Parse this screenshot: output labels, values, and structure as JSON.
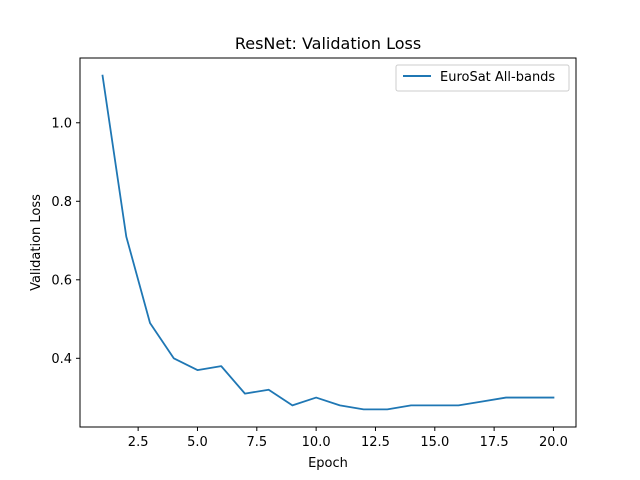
{
  "chart_data": {
    "type": "line",
    "title": "ResNet: Validation Loss",
    "xlabel": "Epoch",
    "ylabel": "Validation Loss",
    "xlim": [
      0.05,
      20.95
    ],
    "ylim": [
      0.225,
      1.165
    ],
    "xticks": [
      2.5,
      5.0,
      7.5,
      10.0,
      12.5,
      15.0,
      17.5,
      20.0
    ],
    "xtick_labels": [
      "2.5",
      "5.0",
      "7.5",
      "10.0",
      "12.5",
      "15.0",
      "17.5",
      "20.0"
    ],
    "yticks": [
      0.4,
      0.6,
      0.8,
      1.0
    ],
    "ytick_labels": [
      "0.4",
      "0.6",
      "0.8",
      "1.0"
    ],
    "grid": false,
    "legend_position": "top-right",
    "series": [
      {
        "name": "EuroSat All-bands",
        "color": "#1f77b4",
        "x": [
          1,
          2,
          3,
          4,
          5,
          6,
          7,
          8,
          9,
          10,
          11,
          12,
          13,
          14,
          15,
          16,
          17,
          18,
          19,
          20
        ],
        "y": [
          1.12,
          0.71,
          0.49,
          0.4,
          0.37,
          0.38,
          0.31,
          0.32,
          0.28,
          0.3,
          0.28,
          0.27,
          0.27,
          0.28,
          0.28,
          0.28,
          0.29,
          0.3,
          0.3,
          0.3
        ]
      }
    ]
  }
}
